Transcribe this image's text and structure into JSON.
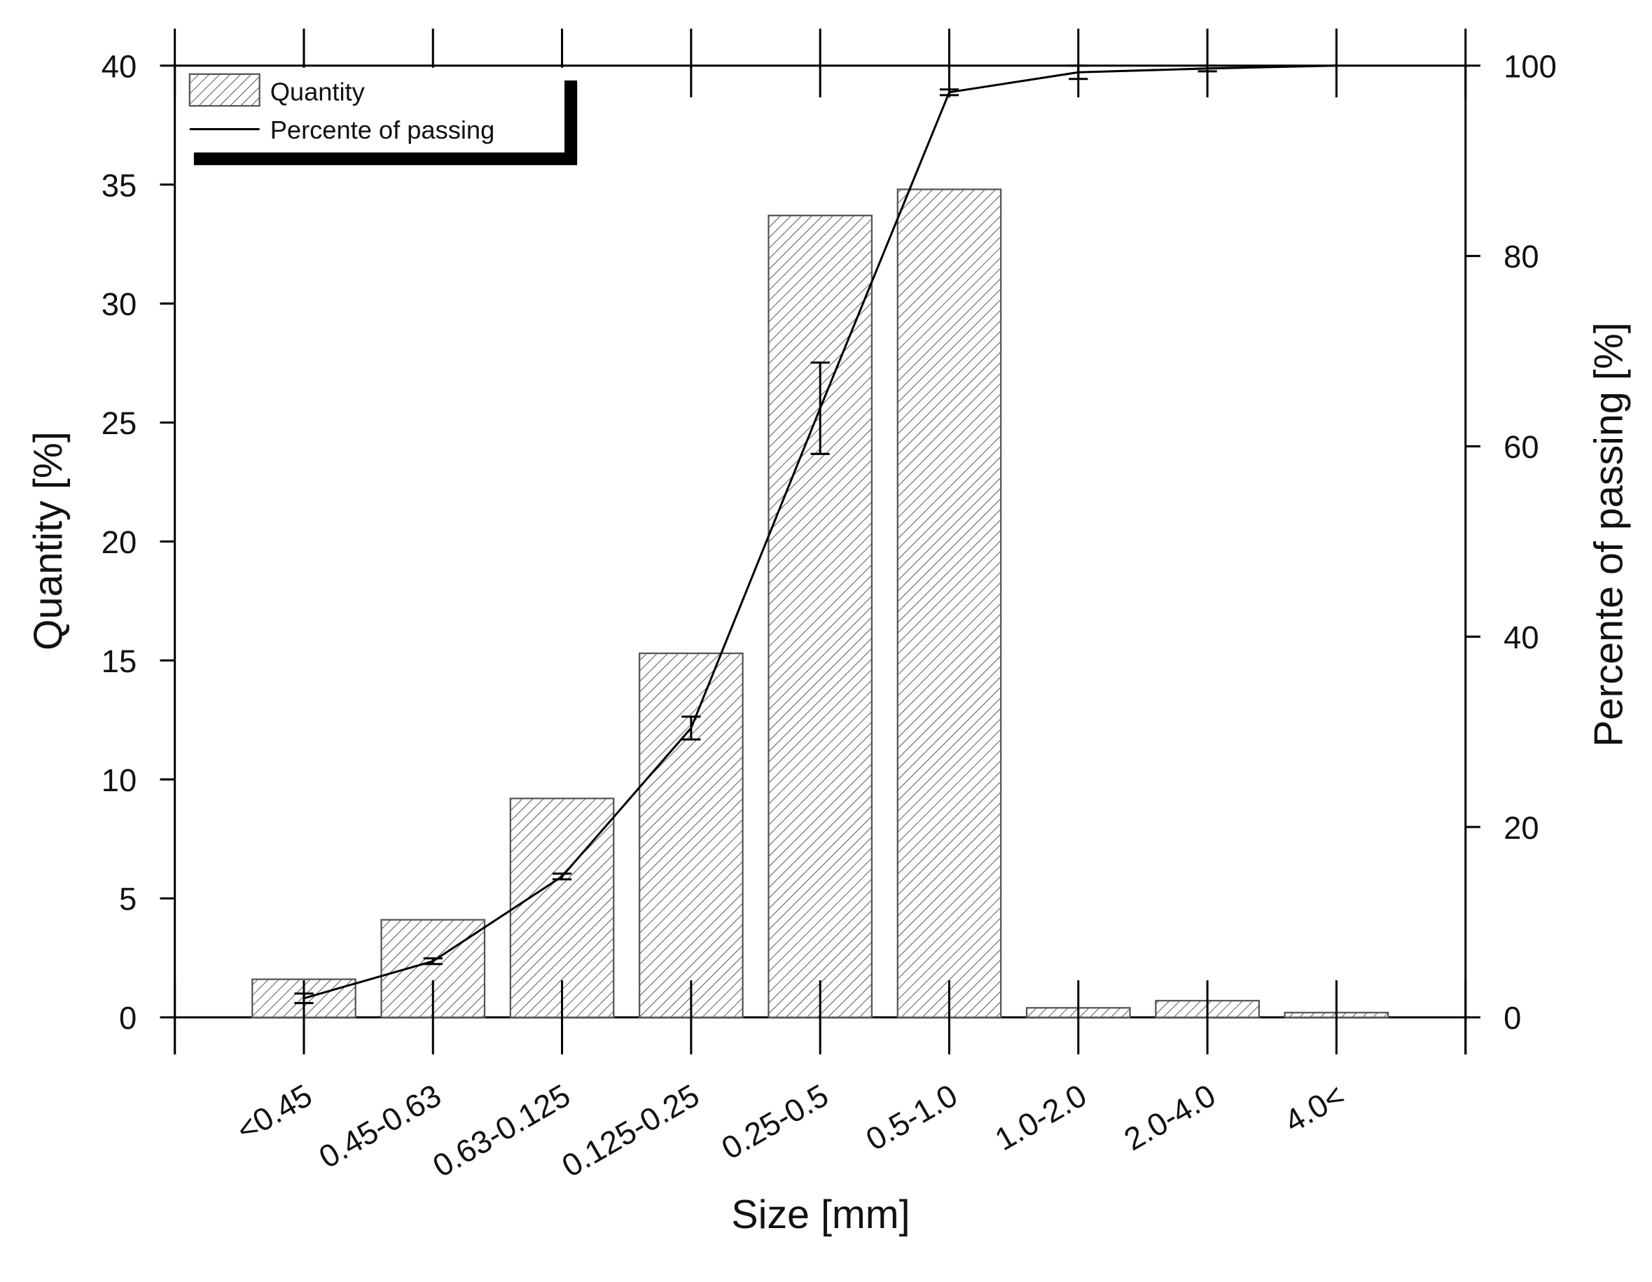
{
  "chart_data": {
    "type": "bar",
    "x_label": "Size [mm]",
    "y_label": "Quantity [%]",
    "y2_label": "Percente of passing [%]",
    "categories": [
      "<0.45",
      "0.45-0.63",
      "0.63-0.125",
      "0.125-0.25",
      "0.25-0.5",
      "0.5-1.0",
      "1.0-2.0",
      "2.0-4.0",
      "4.0<"
    ],
    "series": [
      {
        "name": "Quantity",
        "type": "bar",
        "color": "#555555",
        "values": [
          1.6,
          4.1,
          9.2,
          15.3,
          33.7,
          34.8,
          0.4,
          0.7,
          0.2
        ]
      },
      {
        "name": "Percente of passing",
        "type": "line",
        "axis": "y2",
        "color": "#000000",
        "values": [
          2.0,
          5.9,
          14.8,
          30.4,
          64.0,
          97.2,
          99.3,
          99.7,
          100
        ],
        "errors": [
          0.5,
          0.3,
          0.3,
          1.2,
          4.8,
          0.3,
          0.7,
          0.3,
          null
        ]
      }
    ],
    "ylim": [
      0,
      40
    ],
    "yticks": [
      0,
      5,
      10,
      15,
      20,
      25,
      30,
      35,
      40
    ],
    "y2lim": [
      0,
      100
    ],
    "y2ticks": [
      0,
      20,
      40,
      60,
      80,
      100
    ],
    "legend": "upper left",
    "grid": false
  }
}
